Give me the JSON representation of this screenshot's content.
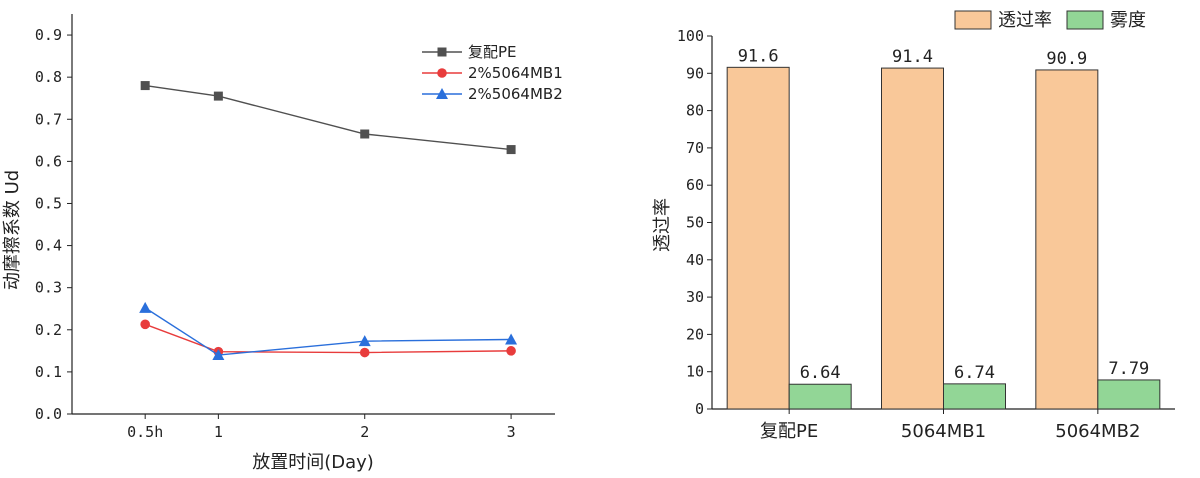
{
  "chart_data": [
    {
      "type": "line",
      "x_positions": [
        0.5,
        1,
        2,
        3
      ],
      "categories": [
        "0.5h",
        "1",
        "2",
        "3"
      ],
      "xlim": [
        0,
        3.3
      ],
      "ylim": [
        0,
        0.95
      ],
      "yticks": [
        "0.0",
        "0.1",
        "0.2",
        "0.3",
        "0.4",
        "0.5",
        "0.6",
        "0.7",
        "0.8",
        "0.9"
      ],
      "ytick_values": [
        0,
        0.1,
        0.2,
        0.3,
        0.4,
        0.5,
        0.6,
        0.7,
        0.8,
        0.9
      ],
      "xlabel": "放置时间(Day)",
      "ylabel": "动摩擦系数 Ud",
      "legend_position": "top-right",
      "series": [
        {
          "name": "复配PE",
          "values": [
            0.78,
            0.755,
            0.665,
            0.628
          ],
          "color": "#505050",
          "marker": "square"
        },
        {
          "name": "2%5064MB1",
          "values": [
            0.213,
            0.148,
            0.146,
            0.15
          ],
          "color": "#e83c3c",
          "marker": "circle"
        },
        {
          "name": "2%5064MB2",
          "values": [
            0.252,
            0.14,
            0.173,
            0.177
          ],
          "color": "#2a6fdb",
          "marker": "triangle"
        }
      ]
    },
    {
      "type": "bar",
      "categories": [
        "复配PE",
        "5064MB1",
        "5064MB2"
      ],
      "ylim": [
        0,
        100
      ],
      "yticks": [
        "0",
        "10",
        "20",
        "30",
        "40",
        "50",
        "60",
        "70",
        "80",
        "90",
        "100"
      ],
      "ytick_values": [
        0,
        10,
        20,
        30,
        40,
        50,
        60,
        70,
        80,
        90,
        100
      ],
      "xlabel": "",
      "ylabel": "透过率",
      "legend_position": "top-right",
      "series": [
        {
          "name": "透过率",
          "values": [
            91.6,
            91.4,
            90.9
          ],
          "labels": [
            "91.6",
            "91.4",
            "90.9"
          ],
          "color": "#f9c899"
        },
        {
          "name": "雾度",
          "values": [
            6.64,
            6.74,
            7.79
          ],
          "labels": [
            "6.64",
            "6.74",
            "7.79"
          ],
          "color": "#92d696"
        }
      ]
    }
  ]
}
